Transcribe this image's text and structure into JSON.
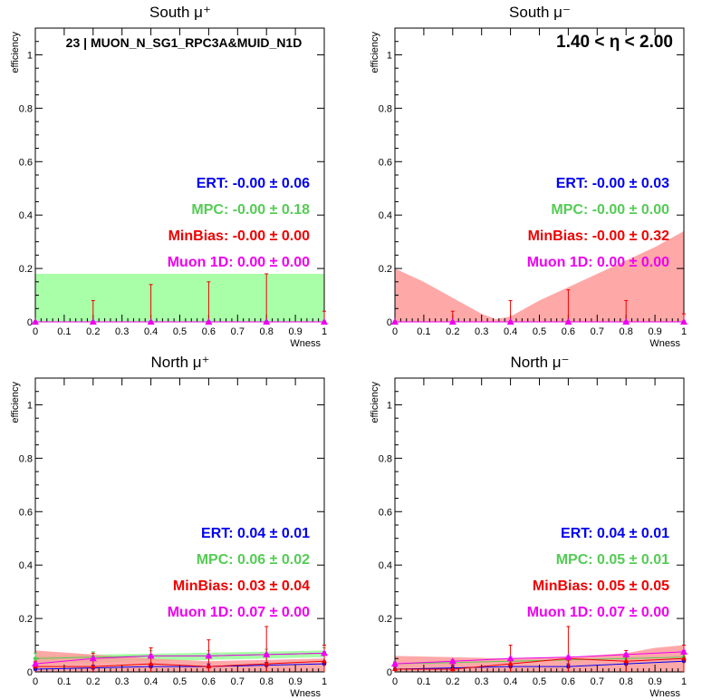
{
  "colors": {
    "ert": "#0000ee",
    "mpc": "#55cc55",
    "minbias": "#ee0000",
    "muon": "#ee00ee",
    "mpc_band": "#99ff99",
    "minbias_band": "#ff9999"
  },
  "chart_data": [
    {
      "type": "scatter",
      "title": "South μ⁺",
      "xlabel": "Wness",
      "ylabel": "efficiency",
      "xlim": [
        0,
        1
      ],
      "ylim": [
        0,
        1.1
      ],
      "annotation": "23 | MUON_N_SG1_RPC3A&MUID_N1D",
      "labels": {
        "ert": "ERT: -0.00 ± 0.06",
        "mpc": "MPC: -0.00 ± 0.18",
        "minbias": "MinBias: -0.00 ± 0.00",
        "muon": "Muon 1D: 0.00 ± 0.00"
      },
      "bands": [
        {
          "name": "MPC",
          "x": [
            0,
            1
          ],
          "lower": [
            0,
            0
          ],
          "upper": [
            0.18,
            0.18
          ]
        }
      ],
      "series": [
        {
          "name": "ERT",
          "x": [
            0,
            0.2,
            0.4,
            0.6,
            0.8,
            1.0
          ],
          "values": [
            0,
            0,
            0,
            0,
            0,
            0
          ],
          "err": [
            0,
            0,
            0,
            0,
            0,
            0
          ]
        },
        {
          "name": "MinBias",
          "x": [
            0,
            0.2,
            0.4,
            0.6,
            0.8,
            1.0
          ],
          "values": [
            0,
            0,
            0,
            0,
            0,
            0
          ],
          "err": [
            0,
            0.08,
            0.14,
            0.15,
            0.18,
            0.04
          ]
        },
        {
          "name": "Muon 1D",
          "x": [
            0,
            0.2,
            0.4,
            0.6,
            0.8,
            1.0
          ],
          "values": [
            0,
            0,
            0,
            0,
            0,
            0
          ],
          "err": [
            0,
            0,
            0,
            0,
            0,
            0
          ]
        }
      ]
    },
    {
      "type": "scatter",
      "title": "South μ⁻",
      "xlabel": "Wness",
      "ylabel": "efficiency",
      "xlim": [
        0,
        1
      ],
      "ylim": [
        0,
        1.1
      ],
      "annotation": "1.40 < η < 2.00",
      "labels": {
        "ert": "ERT: -0.00 ± 0.03",
        "mpc": "MPC: -0.00 ± 0.00",
        "minbias": "MinBias: -0.00 ± 0.32",
        "muon": "Muon 1D: 0.00 ± 0.00"
      },
      "bands": [
        {
          "name": "MinBias",
          "x": [
            0,
            0.1,
            0.2,
            0.3,
            0.35,
            0.4,
            0.5,
            0.6,
            0.7,
            0.8,
            0.9,
            1.0
          ],
          "lower": [
            0,
            0,
            0,
            0,
            0,
            0,
            0,
            0,
            0,
            0,
            0,
            0
          ],
          "upper": [
            0.2,
            0.15,
            0.09,
            0.03,
            0.01,
            0.02,
            0.08,
            0.13,
            0.18,
            0.23,
            0.28,
            0.34
          ]
        }
      ],
      "series": [
        {
          "name": "ERT",
          "x": [
            0,
            0.2,
            0.4,
            0.6,
            0.8,
            1.0
          ],
          "values": [
            0,
            0,
            0,
            0,
            0,
            0
          ],
          "err": [
            0,
            0,
            0,
            0,
            0,
            0
          ]
        },
        {
          "name": "MinBias",
          "x": [
            0,
            0.2,
            0.4,
            0.6,
            0.8,
            1.0
          ],
          "values": [
            0,
            0,
            0,
            0,
            0,
            0
          ],
          "err": [
            0,
            0.04,
            0.08,
            0.12,
            0.08,
            0.03
          ]
        },
        {
          "name": "Muon 1D",
          "x": [
            0,
            0.2,
            0.4,
            0.6,
            0.8,
            1.0
          ],
          "values": [
            0,
            0,
            0,
            0,
            0,
            0
          ],
          "err": [
            0,
            0,
            0,
            0,
            0,
            0
          ]
        }
      ]
    },
    {
      "type": "scatter",
      "title": "North μ⁺",
      "xlabel": "Wness",
      "ylabel": "efficiency",
      "xlim": [
        0,
        1
      ],
      "ylim": [
        0,
        1.1
      ],
      "annotation": "",
      "labels": {
        "ert": "ERT: 0.04 ± 0.01",
        "mpc": "MPC: 0.06 ± 0.02",
        "minbias": "MinBias: 0.03 ± 0.04",
        "muon": "Muon 1D: 0.07 ± 0.00"
      },
      "bands": [
        {
          "name": "MPC",
          "x": [
            0,
            0.2,
            0.4,
            0.6,
            0.8,
            1.0
          ],
          "lower": [
            0.03,
            0.035,
            0.04,
            0.045,
            0.05,
            0.055
          ],
          "upper": [
            0.06,
            0.065,
            0.068,
            0.072,
            0.076,
            0.08
          ]
        },
        {
          "name": "MinBias",
          "x": [
            0,
            0.2,
            0.4,
            0.6,
            0.8,
            1.0
          ],
          "lower": [
            0,
            0,
            0,
            0,
            0,
            0
          ],
          "upper": [
            0.08,
            0.065,
            0.05,
            0.04,
            0.045,
            0.05
          ]
        }
      ],
      "series": [
        {
          "name": "ERT",
          "x": [
            0,
            0.2,
            0.4,
            0.6,
            0.8,
            1.0
          ],
          "values": [
            0.01,
            0.015,
            0.02,
            0.02,
            0.025,
            0.03
          ],
          "err": [
            0.01,
            0.01,
            0.01,
            0.01,
            0.01,
            0.01
          ]
        },
        {
          "name": "MPC",
          "x": [
            0,
            0.2,
            0.4,
            0.6,
            0.8,
            1.0
          ],
          "values": [
            0.05,
            0.055,
            0.06,
            0.06,
            0.065,
            0.07
          ],
          "err": [
            0.02,
            0.02,
            0.02,
            0.02,
            0.02,
            0.02
          ]
        },
        {
          "name": "MinBias",
          "x": [
            0,
            0.2,
            0.4,
            0.6,
            0.8,
            1.0
          ],
          "values": [
            0.02,
            0.02,
            0.03,
            0.02,
            0.03,
            0.04
          ],
          "err": [
            0.02,
            0.05,
            0.06,
            0.1,
            0.14,
            0.06
          ]
        },
        {
          "name": "Muon 1D",
          "x": [
            0,
            0.2,
            0.4,
            0.6,
            0.8,
            1.0
          ],
          "values": [
            0.03,
            0.05,
            0.06,
            0.06,
            0.065,
            0.07
          ],
          "err": [
            0.005,
            0.005,
            0.005,
            0.005,
            0.005,
            0.005
          ]
        }
      ]
    },
    {
      "type": "scatter",
      "title": "North μ⁻",
      "xlabel": "Wness",
      "ylabel": "efficiency",
      "xlim": [
        0,
        1
      ],
      "ylim": [
        0,
        1.1
      ],
      "annotation": "",
      "labels": {
        "ert": "ERT: 0.04 ± 0.01",
        "mpc": "MPC: 0.05 ± 0.01",
        "minbias": "MinBias: 0.05 ± 0.05",
        "muon": "Muon 1D: 0.07 ± 0.00"
      },
      "bands": [
        {
          "name": "MinBias",
          "x": [
            0,
            0.2,
            0.4,
            0.6,
            0.8,
            0.9,
            1.0
          ],
          "lower": [
            0,
            0,
            0,
            0,
            0,
            0,
            0
          ],
          "upper": [
            0.06,
            0.055,
            0.05,
            0.055,
            0.07,
            0.09,
            0.1
          ]
        }
      ],
      "series": [
        {
          "name": "ERT",
          "x": [
            0,
            0.2,
            0.4,
            0.6,
            0.8,
            1.0
          ],
          "values": [
            0.01,
            0.015,
            0.02,
            0.02,
            0.03,
            0.04
          ],
          "err": [
            0.01,
            0.01,
            0.01,
            0.01,
            0.01,
            0.01
          ]
        },
        {
          "name": "MPC",
          "x": [
            0,
            0.2,
            0.4,
            0.6,
            0.8,
            1.0
          ],
          "values": [
            0.03,
            0.035,
            0.04,
            0.045,
            0.05,
            0.055
          ],
          "err": [
            0.01,
            0.01,
            0.01,
            0.01,
            0.01,
            0.01
          ]
        },
        {
          "name": "MinBias",
          "x": [
            0,
            0.2,
            0.4,
            0.6,
            0.8,
            1.0
          ],
          "values": [
            0.01,
            0.01,
            0.03,
            0.05,
            0.04,
            0.05
          ],
          "err": [
            0.02,
            0.03,
            0.07,
            0.12,
            0.04,
            0.05
          ]
        },
        {
          "name": "Muon 1D",
          "x": [
            0,
            0.2,
            0.4,
            0.6,
            0.8,
            1.0
          ],
          "values": [
            0.03,
            0.04,
            0.05,
            0.055,
            0.065,
            0.075
          ],
          "err": [
            0.005,
            0.005,
            0.005,
            0.005,
            0.005,
            0.005
          ]
        }
      ]
    }
  ]
}
